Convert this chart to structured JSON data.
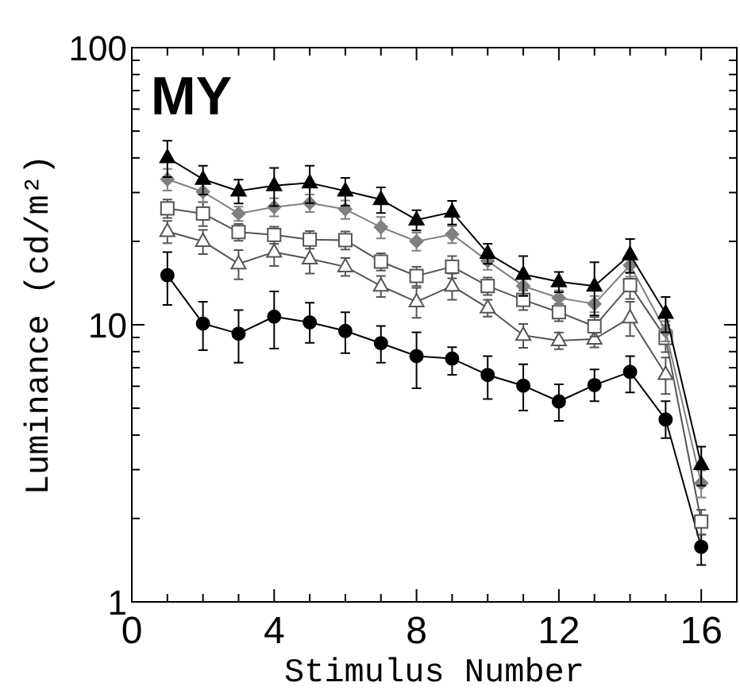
{
  "chart_data": {
    "type": "line",
    "title": "MY",
    "xlabel": "Stimulus Number",
    "ylabel": "Luminance (cd/m²)",
    "x": [
      1,
      2,
      3,
      4,
      5,
      6,
      7,
      8,
      9,
      10,
      11,
      12,
      13,
      14,
      15,
      16
    ],
    "xlim": [
      0,
      17
    ],
    "xticks": [
      0,
      {
        "value": 1,
        "label": null
      },
      {
        "value": 2,
        "label": null
      },
      {
        "value": 3,
        "label": null
      },
      4,
      {
        "value": 5,
        "label": null
      },
      {
        "value": 6,
        "label": null
      },
      {
        "value": 7,
        "label": null
      },
      8,
      {
        "value": 9,
        "label": null
      },
      {
        "value": 10,
        "label": null
      },
      {
        "value": 11,
        "label": null
      },
      12,
      {
        "value": 13,
        "label": null
      },
      {
        "value": 14,
        "label": null
      },
      {
        "value": 15,
        "label": null
      },
      16
    ],
    "ylim": [
      1,
      100
    ],
    "log": "y",
    "yticks": [
      1,
      {
        "value": 2,
        "label": null
      },
      {
        "value": 3,
        "label": null
      },
      {
        "value": 4,
        "label": null
      },
      {
        "value": 5,
        "label": null
      },
      {
        "value": 6,
        "label": null
      },
      {
        "value": 7,
        "label": null
      },
      {
        "value": 8,
        "label": null
      },
      {
        "value": 9,
        "label": null
      },
      10,
      {
        "value": 20,
        "label": null
      },
      {
        "value": 30,
        "label": null
      },
      {
        "value": 40,
        "label": null
      },
      {
        "value": 50,
        "label": null
      },
      {
        "value": 60,
        "label": null
      },
      {
        "value": 70,
        "label": null
      },
      {
        "value": 80,
        "label": null
      },
      {
        "value": 90,
        "label": null
      },
      100
    ],
    "grid": false,
    "series": [
      {
        "color": "#000000",
        "marker": "triangle",
        "values": [
          40.1,
          33.5,
          30.4,
          31.8,
          32.5,
          30.4,
          28.3,
          23.9,
          25.5,
          18.1,
          15.2,
          14.3,
          13.8,
          17.9,
          11.0,
          3.13
        ],
        "errors": [
          6,
          4,
          3,
          5,
          5,
          3.5,
          3,
          2,
          2.5,
          1.5,
          2.5,
          1.2,
          3,
          2.5,
          1.6,
          0.5
        ]
      },
      {
        "color": "#808080",
        "marker": "diamond",
        "values": [
          33.5,
          30.2,
          25.2,
          26.6,
          27.5,
          26.1,
          22.5,
          20.0,
          21.2,
          17.0,
          13.8,
          12.5,
          11.9,
          16.4,
          9.5,
          2.68
        ],
        "errors": [
          3,
          2.5,
          1.5,
          2,
          2,
          2,
          2,
          1.5,
          1.5,
          1.2,
          1,
          0.8,
          0.8,
          1.5,
          0.8,
          0.3
        ]
      },
      {
        "color": "#555555",
        "marker": "square-open",
        "values": [
          26.3,
          25.2,
          21.6,
          21.1,
          20.3,
          20.2,
          16.9,
          15.0,
          16.2,
          13.8,
          12.3,
          11.1,
          9.87,
          13.9,
          8.96,
          1.95
        ],
        "errors": [
          2,
          2.5,
          1.5,
          1.5,
          1.5,
          1.5,
          1.2,
          1.2,
          1.5,
          1,
          1,
          0.8,
          0.8,
          1.5,
          1,
          0.2
        ]
      },
      {
        "color": "#555555",
        "marker": "triangle-open",
        "values": [
          21.7,
          20.0,
          16.6,
          18.3,
          17.3,
          16.2,
          13.8,
          12.1,
          13.8,
          11.5,
          9.16,
          8.77,
          8.88,
          10.6,
          6.62,
          null
        ],
        "errors": [
          2,
          2,
          2,
          2,
          2,
          1.2,
          1.2,
          1.5,
          1.5,
          0.8,
          0.9,
          0.6,
          0.6,
          1.5,
          1,
          null
        ]
      },
      {
        "color": "#000000",
        "marker": "circle",
        "values": [
          15.1,
          10.1,
          9.29,
          10.7,
          10.2,
          9.5,
          8.58,
          7.71,
          7.55,
          6.59,
          6.03,
          5.29,
          6.06,
          6.76,
          4.55,
          1.58
        ],
        "errors": [
          [
            11.8,
            18.3
          ],
          [
            8.1,
            12.1
          ],
          [
            7.3,
            11.3
          ],
          [
            8.2,
            13.2
          ],
          [
            8.6,
            12.0
          ],
          [
            7.9,
            11.1
          ],
          [
            7.3,
            9.9
          ],
          [
            5.9,
            9.4
          ],
          [
            6.6,
            8.3
          ],
          [
            5.4,
            7.7
          ],
          [
            4.9,
            7.2
          ],
          [
            4.5,
            6.1
          ],
          [
            5.3,
            6.9
          ],
          [
            5.7,
            7.7
          ],
          [
            3.9,
            5.3
          ],
          [
            1.36,
            1.75
          ]
        ]
      }
    ]
  }
}
